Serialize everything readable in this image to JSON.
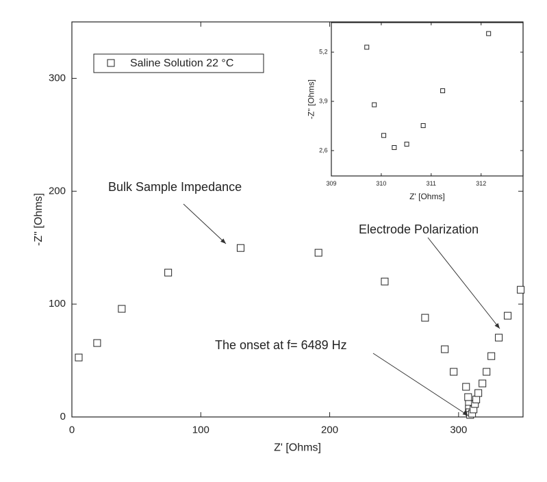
{
  "chart_data": [
    {
      "type": "scatter",
      "xlabel": "Z' [Ohms]",
      "ylabel": "-Z'' [Ohms]",
      "xlim": [
        0,
        350
      ],
      "ylim": [
        0,
        350
      ],
      "xticks": [
        0,
        100,
        200,
        300
      ],
      "yticks": [
        0,
        100,
        200,
        300
      ],
      "series": [
        {
          "name": "Saline Solution 22 °C",
          "color": "#222222",
          "x": [
            5.3,
            19.6,
            38.7,
            74.7,
            130.9,
            191.3,
            242.7,
            274,
            289.3,
            296.2,
            305.8,
            307.4,
            308,
            308,
            308.4,
            309,
            310.5,
            311.6,
            312.7,
            313.7,
            315.3,
            318.5,
            321.7,
            325.4,
            331.2,
            338.1,
            348.2
          ],
          "values": [
            52.7,
            65.5,
            95.8,
            127.9,
            149.7,
            145.5,
            120,
            87.9,
            60,
            40,
            26.7,
            17.6,
            11.5,
            7.3,
            4.2,
            1.8,
            3,
            6.7,
            11.5,
            15.5,
            21.2,
            29.7,
            40,
            53.9,
            70.3,
            89.7,
            112.7
          ]
        }
      ],
      "legend": "upper left",
      "annotations": [
        "Bulk Sample Impedance",
        "Electrode Polarization",
        "The onset at f= 6489 Hz"
      ]
    },
    {
      "type": "scatter",
      "xlabel": "Z' [Ohms]",
      "ylabel": "-Z'' [Ohms]",
      "xlim": [
        309,
        312.84
      ],
      "ylim": [
        1.93,
        5.98
      ],
      "xticks": [
        309,
        310,
        311,
        312
      ],
      "yticks": [
        {
          "value": 2.6,
          "label": "2,6"
        },
        {
          "value": 3.9,
          "label": "3,9"
        },
        {
          "value": 5.2,
          "label": "5,2"
        }
      ],
      "series": [
        {
          "color": "#222222",
          "x": [
            309.71,
            309.86,
            310.05,
            310.26,
            310.51,
            310.84,
            311.23,
            312.15
          ],
          "values": [
            5.33,
            3.81,
            3.0,
            2.68,
            2.77,
            3.26,
            4.18,
            5.69
          ]
        }
      ]
    }
  ]
}
